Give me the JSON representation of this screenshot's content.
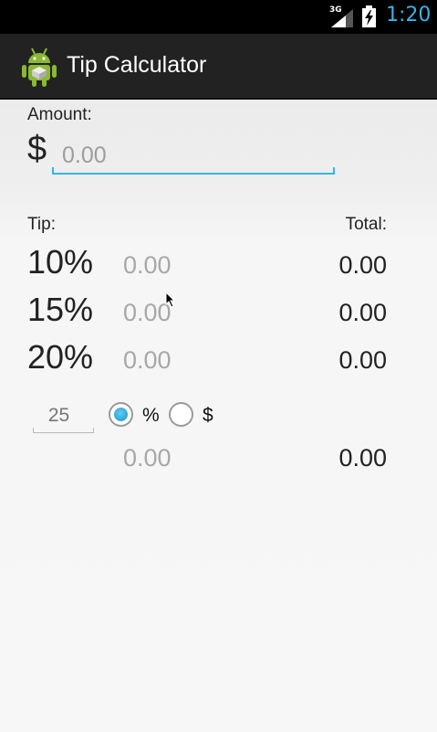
{
  "status_bar": {
    "network_label": "3G",
    "time": "1:20",
    "time_color": "#33b5e5"
  },
  "action_bar": {
    "title": "Tip Calculator",
    "icon": "android-robot-icon"
  },
  "form": {
    "amount_label": "Amount:",
    "currency_symbol": "$",
    "amount_placeholder": "0.00",
    "tip_header": "Tip:",
    "total_header": "Total:",
    "rows": [
      {
        "percent": "10%",
        "tip": "0.00",
        "total": "0.00"
      },
      {
        "percent": "15%",
        "tip": "0.00",
        "total": "0.00"
      },
      {
        "percent": "20%",
        "tip": "0.00",
        "total": "0.00"
      }
    ],
    "custom": {
      "percent_placeholder": "25",
      "option_percent": "%",
      "option_dollar": "$",
      "selected": "%",
      "tip": "0.00",
      "total": "0.00"
    }
  },
  "accent_color": "#33b5e5"
}
